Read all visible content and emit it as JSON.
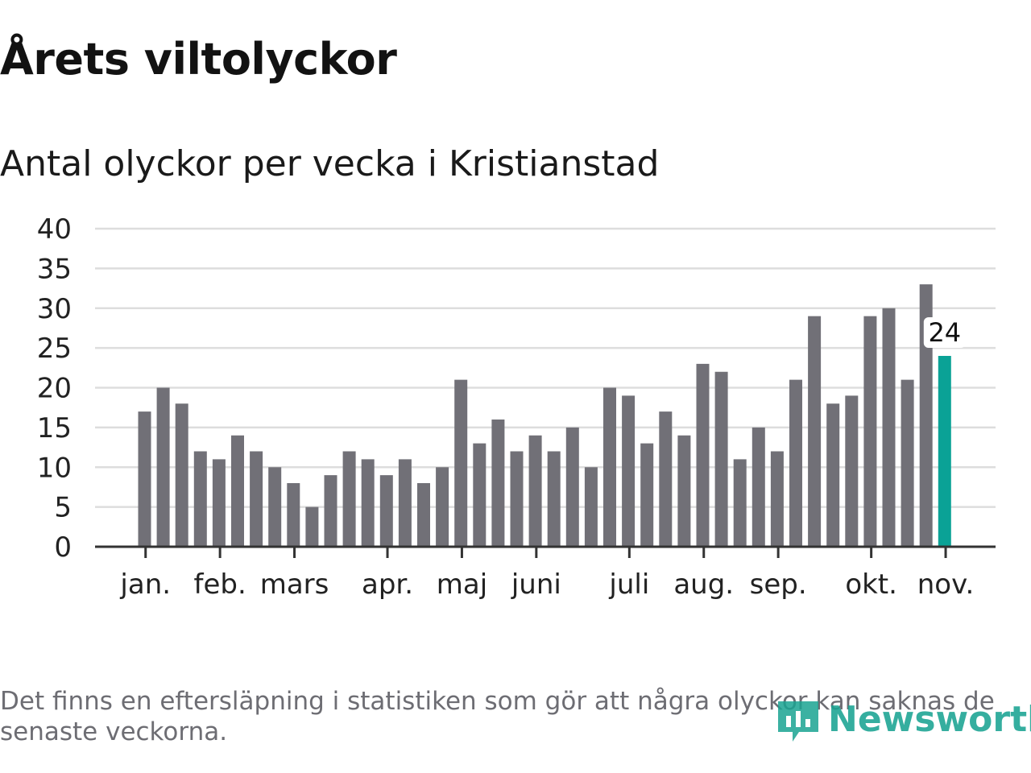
{
  "header": {
    "title": "Årets viltolyckor",
    "subtitle": "Antal olyckor per vecka i Kristianstad"
  },
  "footer": {
    "note": "Det finns en eftersläpning i statistiken som gör att några olyckor kan saknas de senaste veckorna.",
    "brand": "Newsworthy"
  },
  "colors": {
    "bar": "#717077",
    "highlight": "#0aa296",
    "grid": "#dddddd",
    "axis": "#333333",
    "brand": "#1aa392"
  },
  "chart_data": {
    "type": "bar",
    "title": "Antal olyckor per vecka i Kristianstad",
    "xlabel": "",
    "ylabel": "",
    "ylim": [
      0,
      40
    ],
    "y_ticks": [
      "0",
      "5",
      "10",
      "15",
      "20",
      "25",
      "30",
      "35",
      "40"
    ],
    "values": [
      17,
      20,
      18,
      12,
      11,
      14,
      12,
      10,
      8,
      5,
      9,
      12,
      11,
      9,
      11,
      8,
      10,
      21,
      13,
      16,
      12,
      14,
      12,
      15,
      10,
      20,
      19,
      13,
      17,
      14,
      23,
      22,
      11,
      15,
      12,
      21,
      29,
      18,
      19,
      29,
      30,
      21,
      33,
      24
    ],
    "highlight_index": 43,
    "highlight_label": "24",
    "month_labels": [
      {
        "label": "jan.",
        "week_index": 0.4
      },
      {
        "label": "feb.",
        "week_index": 4.4
      },
      {
        "label": "mars",
        "week_index": 8.4
      },
      {
        "label": "apr.",
        "week_index": 13.4
      },
      {
        "label": "maj",
        "week_index": 17.4
      },
      {
        "label": "juni",
        "week_index": 21.4
      },
      {
        "label": "juli",
        "week_index": 26.4
      },
      {
        "label": "aug.",
        "week_index": 30.4
      },
      {
        "label": "sep.",
        "week_index": 34.4
      },
      {
        "label": "okt.",
        "week_index": 39.4
      },
      {
        "label": "nov.",
        "week_index": 43.4
      }
    ]
  }
}
